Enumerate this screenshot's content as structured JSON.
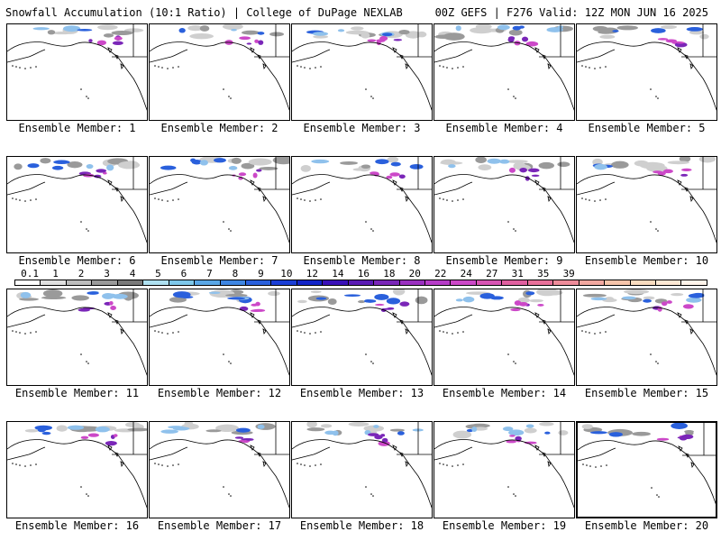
{
  "header": {
    "left_title": "Snowfall Accumulation (10:1 Ratio) | College of DuPage NEXLAB",
    "right_title": "00Z GEFS | F276 Valid: 12Z MON JUN 16 2025"
  },
  "members": [
    {
      "label": "Ensemble Member: 1"
    },
    {
      "label": "Ensemble Member: 2"
    },
    {
      "label": "Ensemble Member: 3"
    },
    {
      "label": "Ensemble Member: 4"
    },
    {
      "label": "Ensemble Member: 5"
    },
    {
      "label": "Ensemble Member: 6"
    },
    {
      "label": "Ensemble Member: 7"
    },
    {
      "label": "Ensemble Member: 8"
    },
    {
      "label": "Ensemble Member: 9"
    },
    {
      "label": "Ensemble Member: 10"
    },
    {
      "label": "Ensemble Member: 11"
    },
    {
      "label": "Ensemble Member: 12"
    },
    {
      "label": "Ensemble Member: 13"
    },
    {
      "label": "Ensemble Member: 14"
    },
    {
      "label": "Ensemble Member: 15"
    },
    {
      "label": "Ensemble Member: 16"
    },
    {
      "label": "Ensemble Member: 17"
    },
    {
      "label": "Ensemble Member: 18"
    },
    {
      "label": "Ensemble Member: 19"
    },
    {
      "label": "Ensemble Member: 20"
    }
  ],
  "legend": {
    "tick_labels": [
      "0.1",
      "1",
      "2",
      "3",
      "4",
      "5",
      "6",
      "7",
      "8",
      "9",
      "10",
      "12",
      "14",
      "16",
      "18",
      "20",
      "22",
      "24",
      "27",
      "31",
      "35",
      "39"
    ],
    "colors": [
      "#ffffff",
      "#e0e0e0",
      "#bdbdbd",
      "#9a9a9a",
      "#7a7a7a",
      "#aee0f0",
      "#7ec8ea",
      "#5aa7e6",
      "#3f86e2",
      "#2a60dc",
      "#1a3ed6",
      "#1224c8",
      "#3a10b8",
      "#5a1ab4",
      "#7a26b8",
      "#9a30c0",
      "#b63cc8",
      "#cc48c8",
      "#d854b4",
      "#e060a0",
      "#e8709a",
      "#ee8c9a",
      "#f2a8a0",
      "#f6c4aa",
      "#fadcc0",
      "#fde8d4",
      "#fff4ea"
    ]
  },
  "snow_colors": {
    "light_gray": "#cfcfcf",
    "mid_gray": "#9a9a9a",
    "light_blue": "#8fc1ec",
    "blue": "#2a60dc",
    "purple": "#7a26b8",
    "magenta": "#cc48c8"
  }
}
